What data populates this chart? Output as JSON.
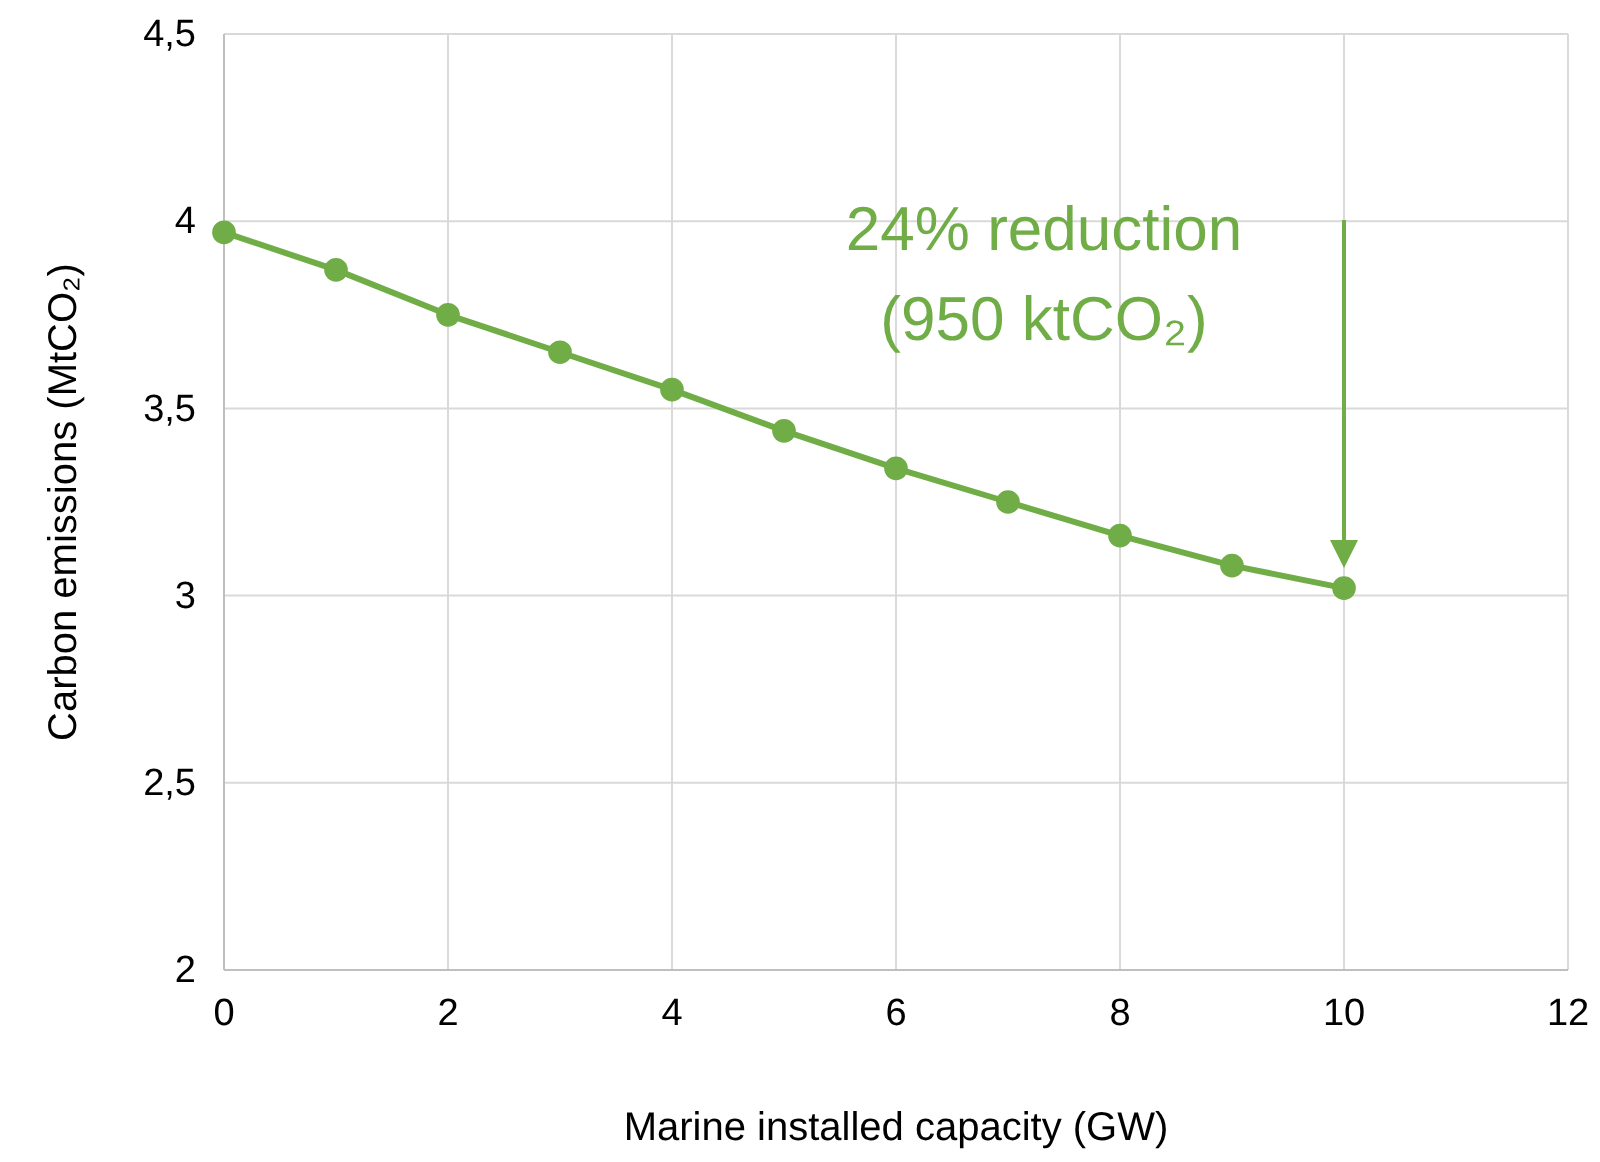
{
  "chart_data": {
    "type": "line",
    "xlabel": "Marine installed capacity (GW)",
    "ylabel": "Carbon emissions (MtCO₂)",
    "x": [
      0,
      1,
      2,
      3,
      4,
      5,
      6,
      7,
      8,
      9,
      10
    ],
    "series": [
      {
        "color": "#70ad47",
        "values": [
          3.97,
          3.87,
          3.75,
          3.65,
          3.55,
          3.44,
          3.34,
          3.25,
          3.16,
          3.08,
          3.02
        ]
      }
    ],
    "xlim": [
      0,
      12
    ],
    "xticks": [
      0,
      2,
      4,
      6,
      8,
      10,
      12
    ],
    "ylim": [
      2,
      4.5
    ],
    "yticks": [
      2,
      {
        "value": 2.5,
        "label": "2,5"
      },
      3,
      {
        "value": 3.5,
        "label": "3,5"
      },
      4,
      {
        "value": 4.5,
        "label": "4,5"
      }
    ],
    "grid": true,
    "marker": "circle",
    "line_style": "solid",
    "annotations": [
      "24% reduction\n(950 ktCO₂)"
    ]
  }
}
